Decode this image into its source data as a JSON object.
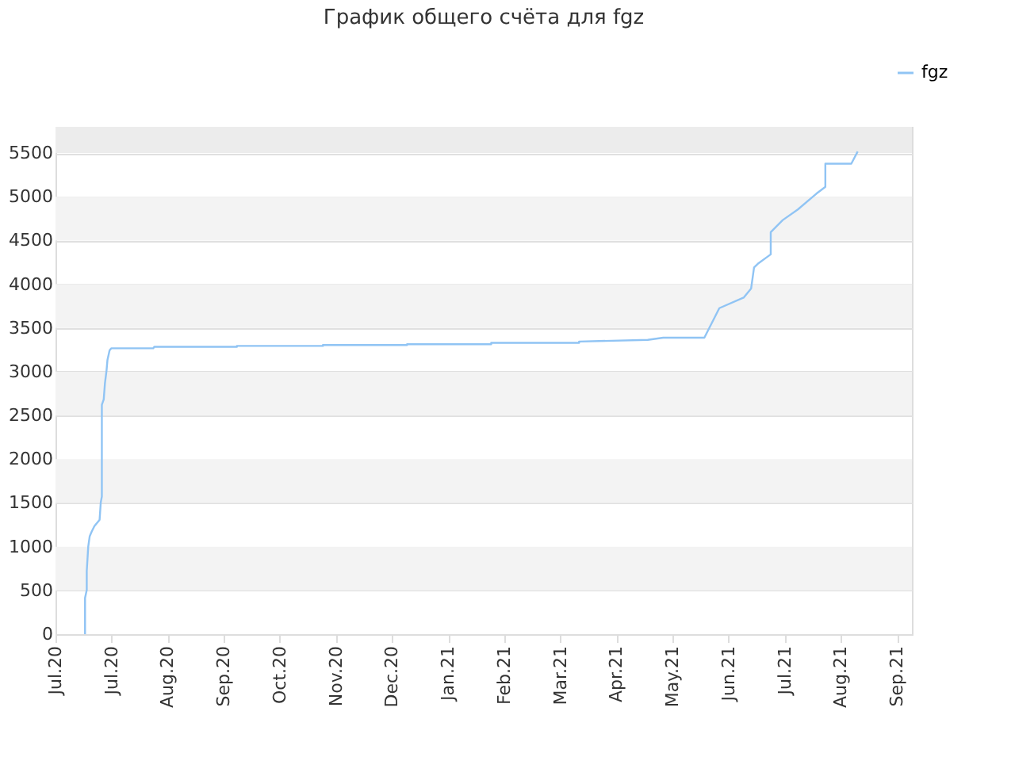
{
  "chart_data": {
    "type": "line",
    "title": "График общего счёта для fgz",
    "x": [
      "2020-07-16T19:00",
      "2020-07-16T19:00",
      "2020-07-17T17:00",
      "2020-07-17T17:00",
      "2020-07-18T12:00",
      "2020-07-19T07:00",
      "2020-07-20T10:00",
      "2020-07-21T19:00",
      "2020-07-24T14:00",
      "2020-07-25T05:00",
      "2020-07-25T19:00",
      "2020-07-25T19:00",
      "2020-07-26T19:00",
      "2020-07-27T10:00",
      "2020-07-28T07:00",
      "2020-07-28T19:00",
      "2020-07-29T22:00",
      "2020-07-30T19:00",
      "2020-08-22T07:00",
      "2020-08-22T19:00",
      "2020-10-06",
      "2020-10-06",
      "2020-11-21",
      "2020-11-21",
      "2021-01-05",
      "2021-01-05",
      "2021-02-19",
      "2021-02-19",
      "2021-04-07",
      "2021-04-07",
      "2021-05-13T17:00",
      "2021-05-22",
      "2021-06-13",
      "2021-06-21",
      "2021-07-04",
      "2021-07-08",
      "2021-07-09T14:00",
      "2021-07-11T14:00",
      "2021-07-18T12:00",
      "2021-07-18T12:00",
      "2021-07-24T22:00",
      "2021-08-02",
      "2021-08-11T22:00",
      "2021-08-16T17:00",
      "2021-08-16T17:00",
      "2021-08-30T14:00",
      "2021-09-03"
    ],
    "series": [
      {
        "name": "fgz",
        "color": "#90c4f4",
        "values": [
          0,
          415,
          505,
          720,
          1000,
          1120,
          1175,
          1235,
          1308,
          1507,
          1574,
          2623,
          2684,
          2864,
          3015,
          3136,
          3244,
          3268,
          3268,
          3285,
          3285,
          3295,
          3295,
          3305,
          3305,
          3315,
          3315,
          3330,
          3330,
          3345,
          3365,
          3389,
          3389,
          3727,
          3848,
          3951,
          4192,
          4234,
          4342,
          4596,
          4734,
          4855,
          5036,
          5113,
          5379,
          5379,
          5518
        ]
      }
    ],
    "xlim": [
      "2020-07-01",
      "2021-10-02"
    ],
    "xticks": [
      {
        "value": "2020-07-01",
        "label": "Jul.20"
      },
      {
        "value": "2020-07-31",
        "label": "Jul.20"
      },
      {
        "value": "2020-08-30",
        "label": "Aug.20"
      },
      {
        "value": "2020-09-29",
        "label": "Sep.20"
      },
      {
        "value": "2020-10-29",
        "label": "Oct.20"
      },
      {
        "value": "2020-11-28",
        "label": "Nov.20"
      },
      {
        "value": "2020-12-28",
        "label": "Dec.20"
      },
      {
        "value": "2021-01-27",
        "label": "Jan.21"
      },
      {
        "value": "2021-02-26",
        "label": "Feb.21"
      },
      {
        "value": "2021-03-28",
        "label": "Mar.21"
      },
      {
        "value": "2021-04-27",
        "label": "Apr.21"
      },
      {
        "value": "2021-05-27",
        "label": "May.21"
      },
      {
        "value": "2021-06-26",
        "label": "Jun.21"
      },
      {
        "value": "2021-07-26",
        "label": "Jul.21"
      },
      {
        "value": "2021-08-25",
        "label": "Aug.21"
      },
      {
        "value": "2021-09-24",
        "label": "Sep.21"
      }
    ],
    "ylim": [
      0,
      5800
    ],
    "yticks": [
      0,
      500,
      1000,
      1500,
      2000,
      2500,
      3000,
      3500,
      4000,
      4500,
      5000,
      5500
    ],
    "bands": [
      {
        "axis": "y",
        "from": 500,
        "to": 1000,
        "color": "#f3f3f3"
      },
      {
        "axis": "y",
        "from": 1500,
        "to": 2000,
        "color": "#f3f3f3"
      },
      {
        "axis": "y",
        "from": 2500,
        "to": 3000,
        "color": "#f3f3f3"
      },
      {
        "axis": "y",
        "from": 3500,
        "to": 4000,
        "color": "#f3f3f3"
      },
      {
        "axis": "y",
        "from": 4500,
        "to": 5000,
        "color": "#f3f3f3"
      },
      {
        "axis": "y",
        "from": 5500,
        "to": 5800,
        "color": "#ececec"
      }
    ],
    "grid": "y",
    "legend": "top right",
    "marker": "none",
    "line_style": "solid"
  }
}
